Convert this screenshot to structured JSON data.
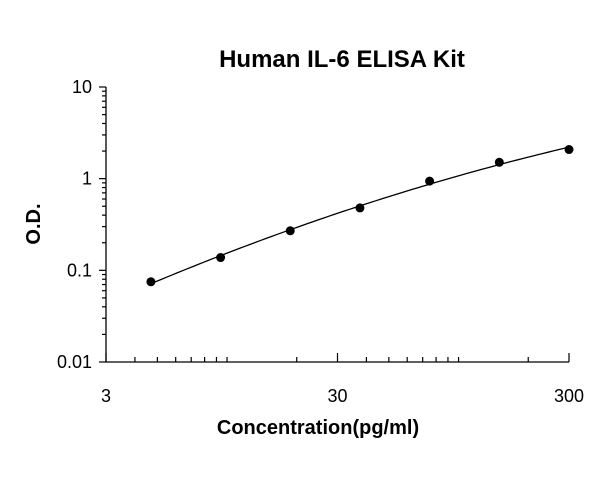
{
  "chart_data": {
    "type": "scatter",
    "title": "Human IL-6 ELISA Kit",
    "xlabel": "Concentration(pg/ml)",
    "ylabel": "O.D.",
    "xscale": "log",
    "yscale": "log",
    "xlim": [
      3,
      300
    ],
    "ylim": [
      0.01,
      10
    ],
    "x_ticks": [
      3,
      30,
      300
    ],
    "x_tick_labels": [
      "3",
      "30",
      "300"
    ],
    "y_ticks": [
      0.01,
      0.1,
      1,
      10
    ],
    "y_tick_labels": [
      "0.01",
      "0.1",
      "1",
      "10"
    ],
    "grid": false,
    "legend": "none",
    "trendline": "smooth fitted curve through points",
    "series": [
      {
        "x": [
          4.69,
          9.38,
          18.75,
          37.5,
          75,
          150,
          300
        ],
        "y": [
          0.075,
          0.138,
          0.27,
          0.48,
          0.94,
          1.51,
          2.08
        ]
      }
    ]
  }
}
